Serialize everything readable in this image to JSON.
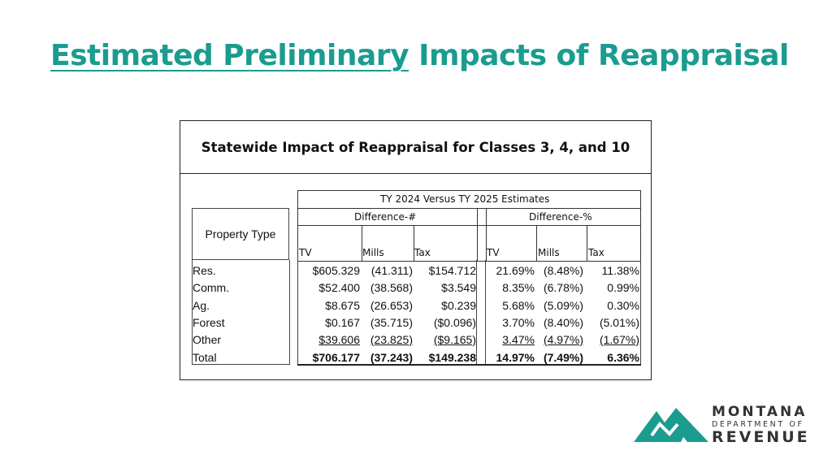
{
  "title": {
    "underlined": "Estimated Preliminary",
    "rest": " Impacts of Reappraisal"
  },
  "table": {
    "caption": "Statewide Impact of Reappraisal for Classes 3, 4, and 10",
    "group_header": "TY 2024 Versus TY 2025 Estimates",
    "diff_num_header": "Difference-#",
    "diff_pct_header": "Difference-%",
    "property_type_header": "Property Type",
    "columns": [
      "TV",
      "Mills",
      "Tax",
      "TV",
      "Mills",
      "Tax"
    ],
    "rows": [
      {
        "type": "Res.",
        "tv": "$605.329",
        "mills": "(41.311)",
        "tax": "$154.712",
        "tv_pct": "21.69%",
        "mills_pct": "(8.48%)",
        "tax_pct": "11.38%"
      },
      {
        "type": "Comm.",
        "tv": "$52.400",
        "mills": "(38.568)",
        "tax": "$3.549",
        "tv_pct": "8.35%",
        "mills_pct": "(6.78%)",
        "tax_pct": "0.99%"
      },
      {
        "type": "Ag.",
        "tv": "$8.675",
        "mills": "(26.653)",
        "tax": "$0.239",
        "tv_pct": "5.68%",
        "mills_pct": "(5.09%)",
        "tax_pct": "0.30%"
      },
      {
        "type": "Forest",
        "tv": "$0.167",
        "mills": "(35.715)",
        "tax": "($0.096)",
        "tv_pct": "3.70%",
        "mills_pct": "(8.40%)",
        "tax_pct": "(5.01%)"
      },
      {
        "type": "Other",
        "tv": "$39.606",
        "mills": "(23.825)",
        "tax": "($9.165)",
        "tv_pct": "3.47%",
        "mills_pct": "(4.97%)",
        "tax_pct": "(1.67%)"
      },
      {
        "type": "Total",
        "tv": "$706.177",
        "mills": "(37.243)",
        "tax": "$149.238",
        "tv_pct": "14.97%",
        "mills_pct": "(7.49%)",
        "tax_pct": "6.36%"
      }
    ]
  },
  "logo": {
    "line1": "MONTANA",
    "line2": "DEPARTMENT OF",
    "line3": "REVENUE",
    "color": "#1a9c8f"
  }
}
